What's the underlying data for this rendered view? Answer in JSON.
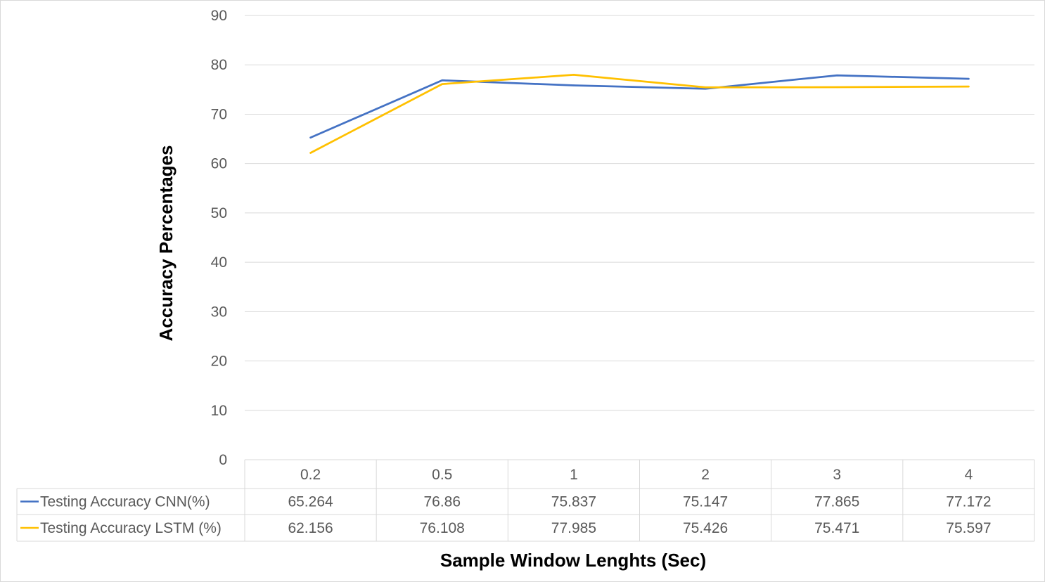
{
  "chart_data": {
    "type": "line",
    "title": "",
    "xlabel": "Sample Window Lenghts (Sec)",
    "ylabel": "Accuracy  Percentages",
    "categories": [
      "0.2",
      "0.5",
      "1",
      "2",
      "3",
      "4"
    ],
    "ylim": [
      0,
      90
    ],
    "yticks": [
      "0",
      "10",
      "20",
      "30",
      "40",
      "50",
      "60",
      "70",
      "80",
      "90"
    ],
    "grid": true,
    "legend": "data-table-below",
    "series": [
      {
        "name": "Testing Accuracy CNN(%)",
        "color": "#4472C4",
        "values": [
          65.264,
          76.86,
          75.837,
          75.147,
          77.865,
          77.172
        ],
        "labels": [
          "65.264",
          "76.86",
          "75.837",
          "75.147",
          "77.865",
          "77.172"
        ]
      },
      {
        "name": "Testing Accuracy LSTM (%)",
        "color": "#FFC000",
        "values": [
          62.156,
          76.108,
          77.985,
          75.426,
          75.471,
          75.597
        ],
        "labels": [
          "62.156",
          "76.108",
          "77.985",
          "75.426",
          "75.471",
          "75.597"
        ]
      }
    ]
  }
}
